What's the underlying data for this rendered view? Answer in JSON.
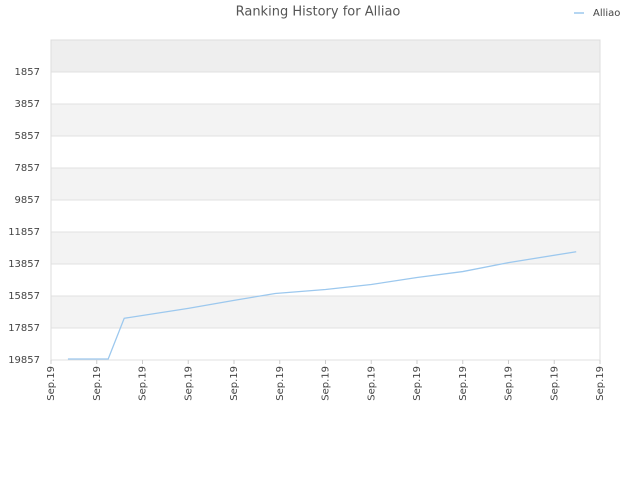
{
  "chart_data": {
    "type": "line",
    "title": "Ranking History for Alliao",
    "x": [
      0.37,
      1.25,
      1.6,
      3.0,
      4.0,
      4.9,
      6.0,
      7.0,
      8.0,
      9.0,
      10.0,
      11.48
    ],
    "series": [
      {
        "name": "Alliao",
        "color": "#9cc8ee",
        "values": [
          19795,
          19795,
          17250,
          16630,
          16130,
          15700,
          15450,
          15140,
          14700,
          14330,
          13770,
          13090
        ]
      }
    ],
    "xlim": [
      0,
      12
    ],
    "xticks": [
      {
        "value": 0,
        "label": "Sep.19"
      },
      {
        "value": 1,
        "label": "Sep.19"
      },
      {
        "value": 2,
        "label": "Sep.19"
      },
      {
        "value": 3,
        "label": "Sep.19"
      },
      {
        "value": 4,
        "label": "Sep.19"
      },
      {
        "value": 5,
        "label": "Sep.19"
      },
      {
        "value": 6,
        "label": "Sep.19"
      },
      {
        "value": 7,
        "label": "Sep.19"
      },
      {
        "value": 8,
        "label": "Sep.19"
      },
      {
        "value": 9,
        "label": "Sep.19"
      },
      {
        "value": 10,
        "label": "Sep.19"
      },
      {
        "value": 11,
        "label": "Sep.19"
      },
      {
        "value": 12,
        "label": "Sep.19"
      }
    ],
    "ylim": [
      19857,
      -143
    ],
    "yticks": [
      1857,
      3857,
      5857,
      7857,
      9857,
      11857,
      13857,
      15857,
      17857,
      19857
    ],
    "grid": true,
    "legend": "top-right"
  }
}
